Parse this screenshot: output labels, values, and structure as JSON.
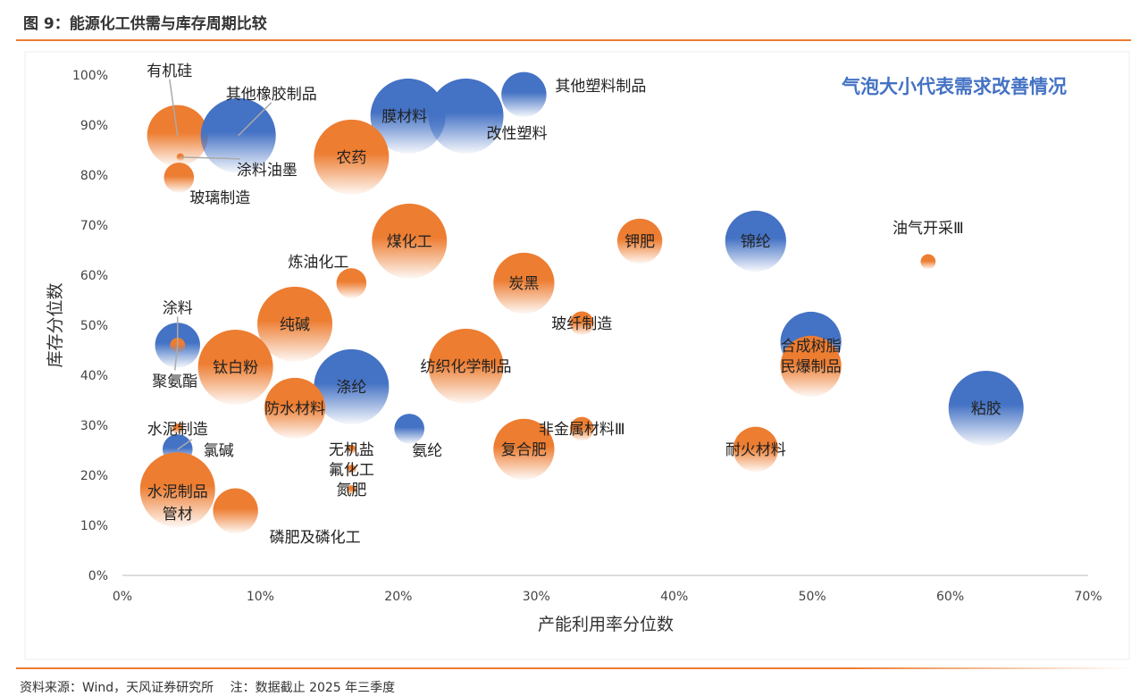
{
  "header": {
    "title": "图 9：能源化工供需与库存周期比较"
  },
  "footer": {
    "source": "资料来源：Wind，天风证券研究所　 注：数据截止 2025 年三季度"
  },
  "chart_data": {
    "type": "scatter",
    "subtype": "bubble",
    "annotation": "气泡大小代表需求改善情况",
    "xlabel": "产能利用率分位数",
    "ylabel": "库存分位数",
    "xlim": [
      0,
      70
    ],
    "ylim": [
      0,
      100
    ],
    "xticks": [
      "0%",
      "10%",
      "20%",
      "30%",
      "40%",
      "50%",
      "60%",
      "70%"
    ],
    "yticks": [
      "0%",
      "10%",
      "20%",
      "30%",
      "40%",
      "50%",
      "60%",
      "70%",
      "80%",
      "90%",
      "100%"
    ],
    "grid": false,
    "colors": {
      "orange": "#ED7D31",
      "blue": "#4472C4"
    },
    "points": [
      {
        "name": "有机硅",
        "x": 4.0,
        "y": 87.9,
        "size": 0.66,
        "color": "orange"
      },
      {
        "name": "其他橡胶制品",
        "x": 8.4,
        "y": 87.9,
        "size": 1.0,
        "color": "blue"
      },
      {
        "name": "涂料油墨",
        "x": 4.2,
        "y": 83.6,
        "size": 0.01,
        "color": "orange"
      },
      {
        "name": "玻璃制造",
        "x": 4.1,
        "y": 79.5,
        "size": 0.16,
        "color": "orange"
      },
      {
        "name": "膜材料",
        "x": 20.7,
        "y": 91.8,
        "size": 1.0,
        "color": "blue"
      },
      {
        "name": "改性塑料",
        "x": 24.9,
        "y": 91.8,
        "size": 1.0,
        "color": "blue"
      },
      {
        "name": "其他塑料制品",
        "x": 29.1,
        "y": 96.1,
        "size": 0.36,
        "color": "blue"
      },
      {
        "name": "农药",
        "x": 16.6,
        "y": 83.6,
        "size": 1.0,
        "color": "orange"
      },
      {
        "name": "煤化工",
        "x": 20.8,
        "y": 66.8,
        "size": 1.0,
        "color": "orange"
      },
      {
        "name": "炼油化工",
        "x": 16.6,
        "y": 58.4,
        "size": 0.16,
        "color": "orange"
      },
      {
        "name": "炭黑",
        "x": 29.1,
        "y": 58.4,
        "size": 0.66,
        "color": "orange"
      },
      {
        "name": "钾肥",
        "x": 37.5,
        "y": 66.8,
        "size": 0.36,
        "color": "orange"
      },
      {
        "name": "锦纶",
        "x": 45.9,
        "y": 66.8,
        "size": 0.66,
        "color": "blue"
      },
      {
        "name": "油气开采Ⅲ",
        "x": 58.4,
        "y": 62.7,
        "size": 0.04,
        "color": "orange"
      },
      {
        "name": "玻纤制造",
        "x": 33.3,
        "y": 50.4,
        "size": 0.1,
        "color": "orange"
      },
      {
        "name": "纯碱",
        "x": 12.5,
        "y": 50.2,
        "size": 1.0,
        "color": "orange"
      },
      {
        "name": "涂料",
        "x": 4.0,
        "y": 46.0,
        "size": 0.36,
        "color": "blue"
      },
      {
        "name": "聚氨酯",
        "x": 4.0,
        "y": 46.0,
        "size": 0.04,
        "color": "orange"
      },
      {
        "name": "钛白粉",
        "x": 8.2,
        "y": 41.6,
        "size": 1.0,
        "color": "orange"
      },
      {
        "name": "涤纶",
        "x": 16.6,
        "y": 37.7,
        "size": 1.0,
        "color": "blue"
      },
      {
        "name": "纺织化学制品",
        "x": 24.9,
        "y": 41.8,
        "size": 1.0,
        "color": "orange"
      },
      {
        "name": "合成树脂",
        "x": 49.9,
        "y": 46.6,
        "size": 0.66,
        "color": "blue"
      },
      {
        "name": "民爆制品",
        "x": 49.9,
        "y": 41.8,
        "size": 0.66,
        "color": "orange"
      },
      {
        "name": "防水材料",
        "x": 12.5,
        "y": 33.4,
        "size": 0.66,
        "color": "orange"
      },
      {
        "name": "氨纶",
        "x": 20.8,
        "y": 29.3,
        "size": 0.16,
        "color": "blue"
      },
      {
        "name": "复合肥",
        "x": 29.1,
        "y": 25.2,
        "size": 0.66,
        "color": "orange"
      },
      {
        "name": "非金属材料Ⅲ",
        "x": 33.3,
        "y": 29.3,
        "size": 0.1,
        "color": "orange"
      },
      {
        "name": "耐火材料",
        "x": 45.9,
        "y": 25.2,
        "size": 0.36,
        "color": "orange"
      },
      {
        "name": "粘胶",
        "x": 62.6,
        "y": 33.4,
        "size": 1.0,
        "color": "blue"
      },
      {
        "name": "水泥制造",
        "x": 4.0,
        "y": 29.3,
        "size": 0.02,
        "color": "orange"
      },
      {
        "name": "氯碱",
        "x": 4.0,
        "y": 25.2,
        "size": 0.16,
        "color": "blue"
      },
      {
        "name": "无机盐",
        "x": 16.6,
        "y": 25.2,
        "size": 0.015,
        "color": "orange"
      },
      {
        "name": "氟化工",
        "x": 16.6,
        "y": 21.2,
        "size": 0.015,
        "color": "orange"
      },
      {
        "name": "氮肥",
        "x": 16.6,
        "y": 17.1,
        "size": 0.015,
        "color": "orange"
      },
      {
        "name": "水泥制品管材",
        "x": 4.0,
        "y": 17.1,
        "size": 1.0,
        "color": "orange"
      },
      {
        "name": "磷肥及磷化工",
        "x": 8.2,
        "y": 12.9,
        "size": 0.36,
        "color": "orange"
      }
    ]
  }
}
